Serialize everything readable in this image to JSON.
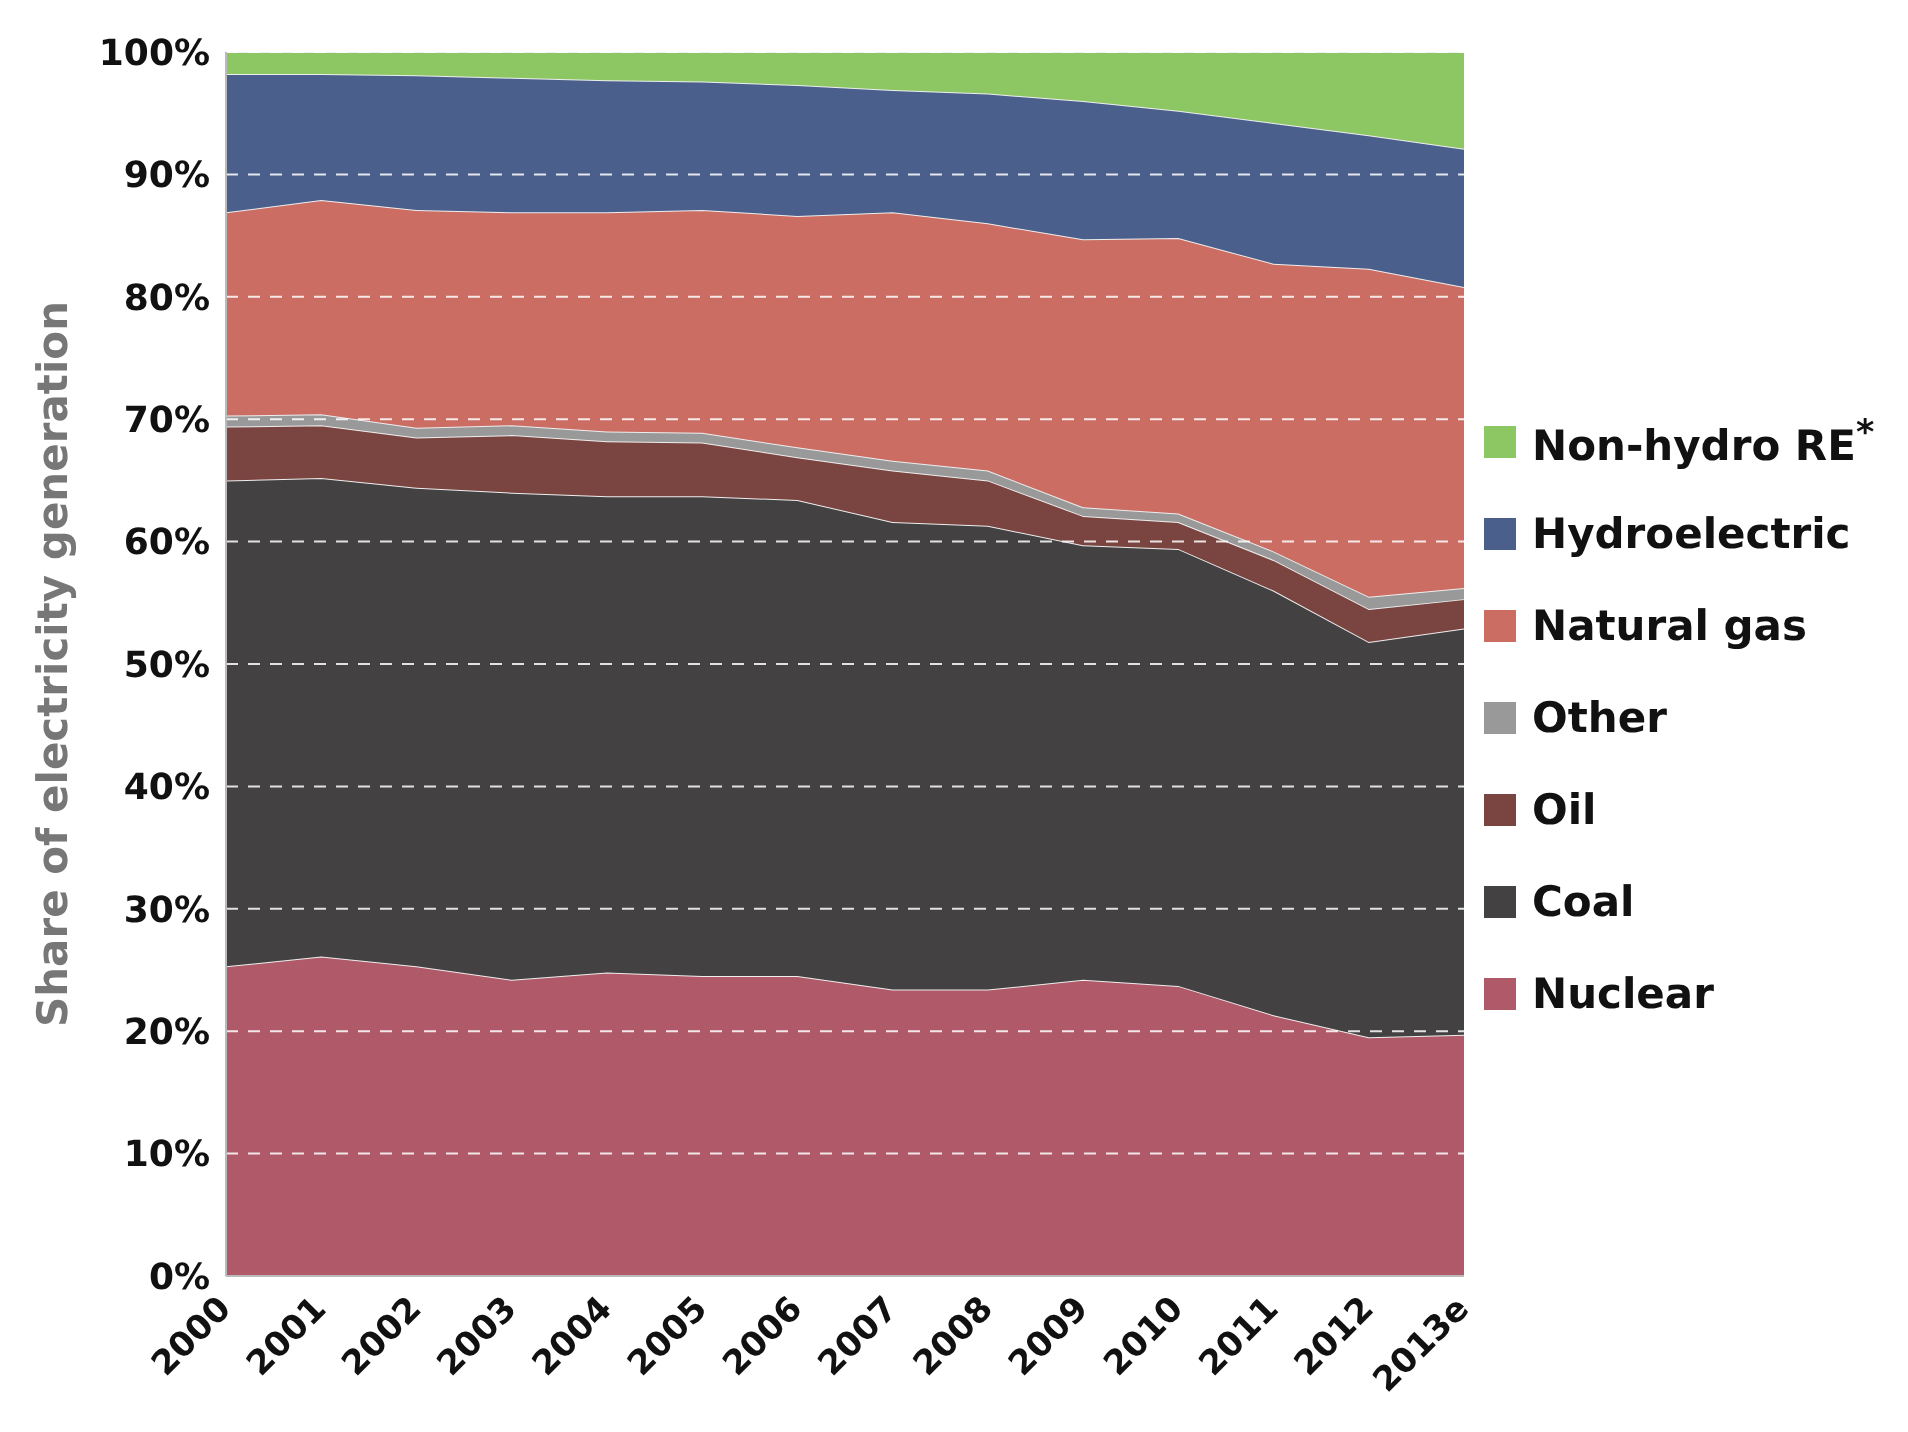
{
  "chart_data": {
    "type": "area",
    "stacked": true,
    "ylabel": "Share of electricity generation",
    "categories": [
      "2000",
      "2001",
      "2002",
      "2003",
      "2004",
      "2005",
      "2006",
      "2007",
      "2008",
      "2009",
      "2010",
      "2011",
      "2012",
      "2013e"
    ],
    "series": [
      {
        "name": "Nuclear",
        "color": "#b05968",
        "values": [
          25.3,
          26.1,
          25.3,
          24.2,
          24.8,
          24.5,
          24.5,
          23.4,
          23.4,
          24.2,
          23.7,
          21.3,
          19.5,
          19.7
        ]
      },
      {
        "name": "Coal",
        "color": "#434141",
        "values": [
          39.7,
          39.1,
          39.1,
          39.8,
          38.9,
          39.2,
          38.9,
          38.2,
          37.9,
          35.5,
          35.7,
          34.7,
          32.3,
          33.2
        ]
      },
      {
        "name": "Oil",
        "color": "#7a4540",
        "values": [
          4.4,
          4.3,
          4.1,
          4.7,
          4.5,
          4.4,
          3.5,
          4.2,
          3.7,
          2.4,
          2.2,
          2.5,
          2.7,
          2.4
        ]
      },
      {
        "name": "Other",
        "color": "#999999",
        "values": [
          0.9,
          0.9,
          0.8,
          0.8,
          0.8,
          0.8,
          0.8,
          0.8,
          0.8,
          0.7,
          0.7,
          0.7,
          1.0,
          0.9
        ]
      },
      {
        "name": "Natural gas",
        "color": "#cb6d63",
        "values": [
          16.6,
          17.5,
          17.8,
          17.4,
          17.9,
          18.2,
          18.9,
          20.3,
          20.2,
          21.9,
          22.5,
          23.5,
          26.8,
          24.6
        ]
      },
      {
        "name": "Hydroelectric",
        "color": "#4a5f8c",
        "values": [
          11.3,
          10.3,
          11.0,
          11.0,
          10.8,
          10.5,
          10.7,
          10.0,
          10.6,
          11.3,
          10.4,
          11.5,
          10.9,
          11.3
        ]
      },
      {
        "name": "Non-hydro RE$^{*}$",
        "color": "#8dc764",
        "values": [
          1.8,
          1.8,
          1.9,
          2.1,
          2.3,
          2.4,
          2.7,
          3.1,
          3.4,
          4.0,
          4.8,
          5.8,
          6.8,
          7.9
        ]
      }
    ],
    "ylim": [
      0,
      100
    ],
    "yticks": [
      {
        "value": 0,
        "label": "0%"
      },
      {
        "value": 10,
        "label": "10%"
      },
      {
        "value": 20,
        "label": "20%"
      },
      {
        "value": 30,
        "label": "30%"
      },
      {
        "value": 40,
        "label": "40%"
      },
      {
        "value": 50,
        "label": "50%"
      },
      {
        "value": 60,
        "label": "60%"
      },
      {
        "value": 70,
        "label": "70%"
      },
      {
        "value": 80,
        "label": "80%"
      },
      {
        "value": 90,
        "label": "90%"
      },
      {
        "value": 100,
        "label": "100%"
      }
    ],
    "grid": "y",
    "legend": "right"
  }
}
